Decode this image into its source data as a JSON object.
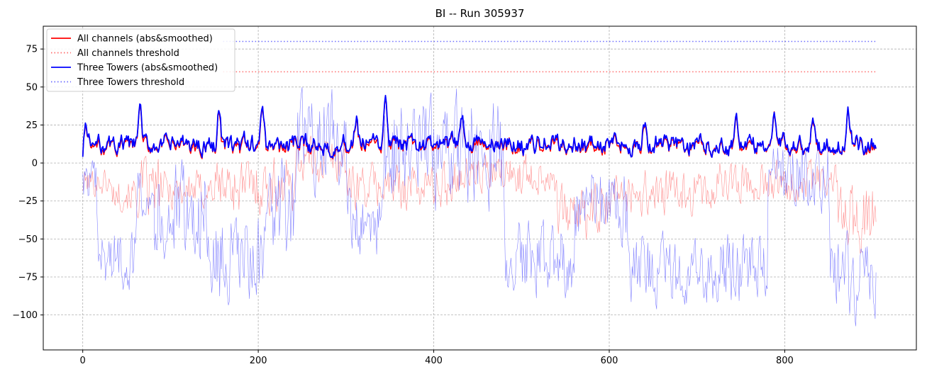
{
  "chart_data": {
    "type": "line",
    "title": "BI -- Run 305937",
    "xlabel": "",
    "ylabel": "",
    "xlim": [
      -45,
      950
    ],
    "ylim": [
      -123,
      90
    ],
    "xticks": [
      0,
      200,
      400,
      600,
      800
    ],
    "yticks": [
      75,
      50,
      25,
      0,
      -25,
      -50,
      -75,
      -100
    ],
    "grid": true,
    "legend_position": "top-left",
    "n_points": 905,
    "legend": [
      {
        "label": "All channels (abs&smoothed)",
        "color": "#ff0000",
        "style": "solid"
      },
      {
        "label": "All channels threshold",
        "color": "#ff6b6b",
        "style": "dotted"
      },
      {
        "label": "Three Towers (abs&smoothed)",
        "color": "#0000ff",
        "style": "solid"
      },
      {
        "label": "Three Towers threshold",
        "color": "#6b6bff",
        "style": "dotted"
      }
    ],
    "thresholds": [
      {
        "name": "All channels threshold",
        "y": 60,
        "x": [
          160,
          905
        ],
        "color": "#ff6b6b"
      },
      {
        "name": "Three Towers threshold",
        "y": 80,
        "x": [
          160,
          905
        ],
        "color": "#6b6bff"
      }
    ],
    "series_raw": [
      {
        "color": "#ff6b6b",
        "envelope": [
          {
            "x": [
              0,
              30
            ],
            "lo": -25,
            "hi": 0
          },
          {
            "x": [
              30,
              60
            ],
            "lo": -35,
            "hi": -5
          },
          {
            "x": [
              60,
              90
            ],
            "lo": -45,
            "hi": 10
          },
          {
            "x": [
              90,
              150
            ],
            "lo": -35,
            "hi": 0
          },
          {
            "x": [
              150,
              240
            ],
            "lo": -40,
            "hi": 10
          },
          {
            "x": [
              240,
              300
            ],
            "lo": -20,
            "hi": 25
          },
          {
            "x": [
              300,
              420
            ],
            "lo": -35,
            "hi": 5
          },
          {
            "x": [
              420,
              540
            ],
            "lo": -25,
            "hi": 10
          },
          {
            "x": [
              540,
              600
            ],
            "lo": -55,
            "hi": -10
          },
          {
            "x": [
              600,
              720
            ],
            "lo": -40,
            "hi": 0
          },
          {
            "x": [
              720,
              860
            ],
            "lo": -30,
            "hi": 5
          },
          {
            "x": [
              860,
              905
            ],
            "lo": -65,
            "hi": -5
          }
        ]
      },
      {
        "color": "#5a5aff",
        "envelope": [
          {
            "x": [
              0,
              15
            ],
            "lo": -30,
            "hi": 5
          },
          {
            "x": [
              15,
              60
            ],
            "lo": -90,
            "hi": -35
          },
          {
            "x": [
              60,
              80
            ],
            "lo": -40,
            "hi": 5
          },
          {
            "x": [
              80,
              140
            ],
            "lo": -80,
            "hi": 10
          },
          {
            "x": [
              140,
              210
            ],
            "lo": -105,
            "hi": -25
          },
          {
            "x": [
              210,
              240
            ],
            "lo": -70,
            "hi": 10
          },
          {
            "x": [
              240,
              300
            ],
            "lo": -30,
            "hi": 55
          },
          {
            "x": [
              300,
              340
            ],
            "lo": -70,
            "hi": -10
          },
          {
            "x": [
              340,
              480
            ],
            "lo": -40,
            "hi": 55
          },
          {
            "x": [
              480,
              560
            ],
            "lo": -95,
            "hi": -30
          },
          {
            "x": [
              560,
              620
            ],
            "lo": -60,
            "hi": 5
          },
          {
            "x": [
              620,
              780
            ],
            "lo": -100,
            "hi": -40
          },
          {
            "x": [
              780,
              850
            ],
            "lo": -40,
            "hi": 20
          },
          {
            "x": [
              850,
              905
            ],
            "lo": -112,
            "hi": -40
          }
        ]
      }
    ],
    "series_smoothed": [
      {
        "name": "All channels (abs&smoothed)",
        "color": "#ff0000",
        "base": 11,
        "amp": 11
      },
      {
        "name": "Three Towers (abs&smoothed)",
        "color": "#0000ff",
        "base": 12,
        "amp": 12
      }
    ],
    "peaks": [
      {
        "x": 3,
        "y": 27
      },
      {
        "x": 65,
        "y": 40
      },
      {
        "x": 155,
        "y": 36
      },
      {
        "x": 205,
        "y": 42
      },
      {
        "x": 312,
        "y": 34
      },
      {
        "x": 345,
        "y": 43
      },
      {
        "x": 432,
        "y": 38
      },
      {
        "x": 640,
        "y": 27
      },
      {
        "x": 745,
        "y": 32
      },
      {
        "x": 788,
        "y": 35
      },
      {
        "x": 832,
        "y": 33
      },
      {
        "x": 872,
        "y": 32
      }
    ]
  }
}
